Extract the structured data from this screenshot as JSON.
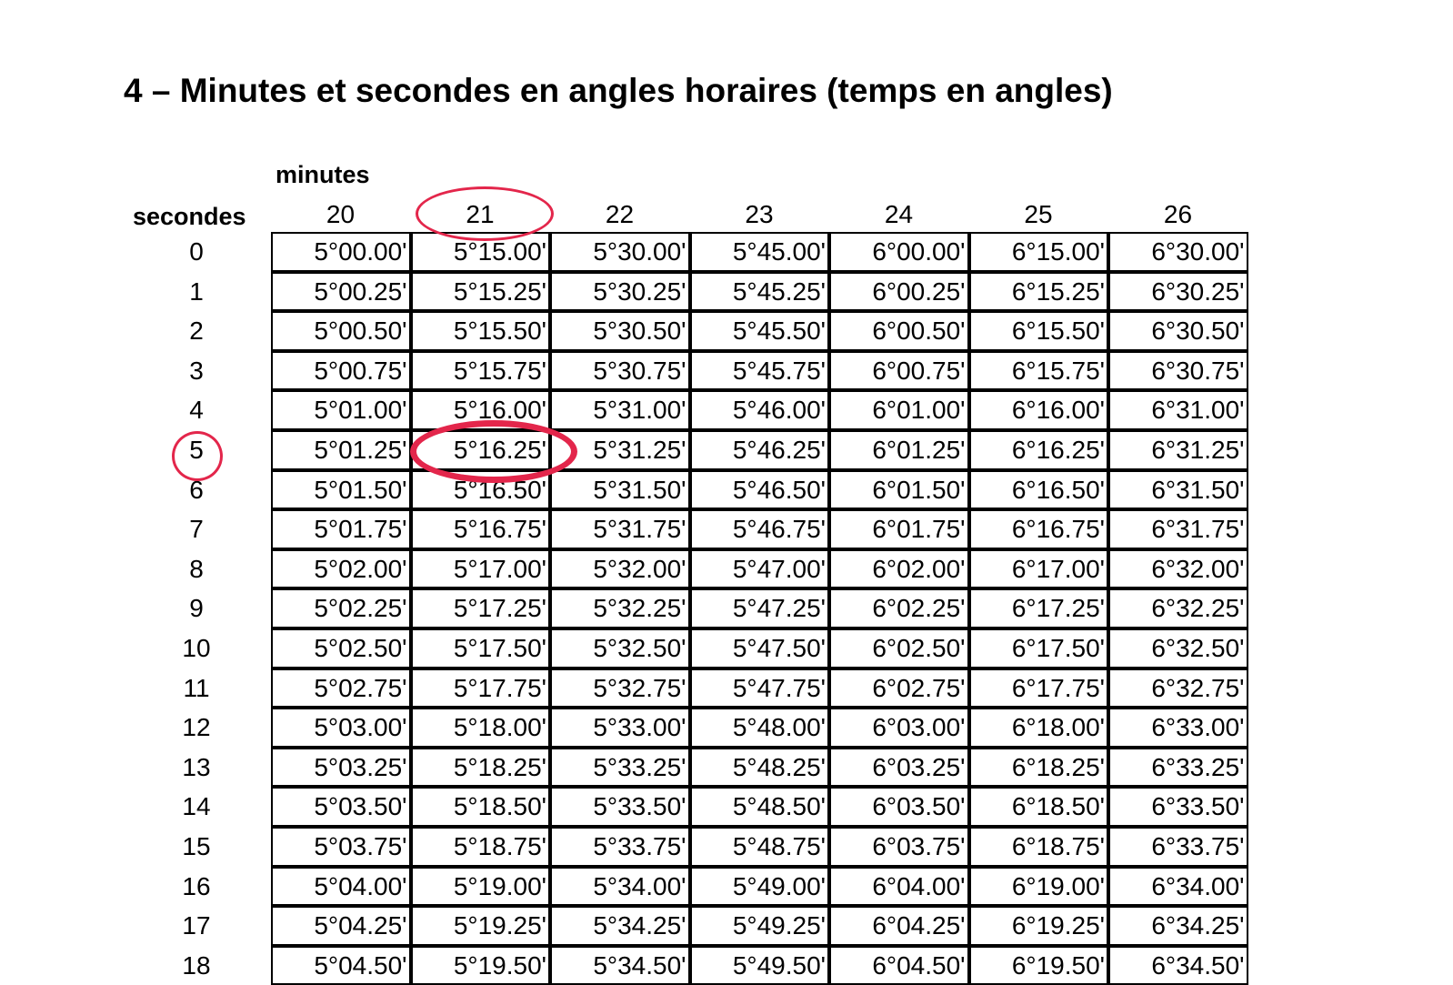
{
  "title": "4 – Minutes et secondes en angles horaires (temps en angles)",
  "minutes_label": "minutes",
  "seconds_label": "secondes",
  "column_headers": [
    "20",
    "21",
    "22",
    "23",
    "24",
    "25",
    "26"
  ],
  "row_labels": [
    "0",
    "1",
    "2",
    "3",
    "4",
    "5",
    "6",
    "7",
    "8",
    "9",
    "10",
    "11",
    "12",
    "13",
    "14",
    "15",
    "16",
    "17",
    "18"
  ],
  "rows": [
    [
      "5°00.00'",
      "5°15.00'",
      "5°30.00'",
      "5°45.00'",
      "6°00.00'",
      "6°15.00'",
      "6°30.00'"
    ],
    [
      "5°00.25'",
      "5°15.25'",
      "5°30.25'",
      "5°45.25'",
      "6°00.25'",
      "6°15.25'",
      "6°30.25'"
    ],
    [
      "5°00.50'",
      "5°15.50'",
      "5°30.50'",
      "5°45.50'",
      "6°00.50'",
      "6°15.50'",
      "6°30.50'"
    ],
    [
      "5°00.75'",
      "5°15.75'",
      "5°30.75'",
      "5°45.75'",
      "6°00.75'",
      "6°15.75'",
      "6°30.75'"
    ],
    [
      "5°01.00'",
      "5°16.00'",
      "5°31.00'",
      "5°46.00'",
      "6°01.00'",
      "6°16.00'",
      "6°31.00'"
    ],
    [
      "5°01.25'",
      "5°16.25'",
      "5°31.25'",
      "5°46.25'",
      "6°01.25'",
      "6°16.25'",
      "6°31.25'"
    ],
    [
      "5°01.50'",
      "5°16.50'",
      "5°31.50'",
      "5°46.50'",
      "6°01.50'",
      "6°16.50'",
      "6°31.50'"
    ],
    [
      "5°01.75'",
      "5°16.75'",
      "5°31.75'",
      "5°46.75'",
      "6°01.75'",
      "6°16.75'",
      "6°31.75'"
    ],
    [
      "5°02.00'",
      "5°17.00'",
      "5°32.00'",
      "5°47.00'",
      "6°02.00'",
      "6°17.00'",
      "6°32.00'"
    ],
    [
      "5°02.25'",
      "5°17.25'",
      "5°32.25'",
      "5°47.25'",
      "6°02.25'",
      "6°17.25'",
      "6°32.25'"
    ],
    [
      "5°02.50'",
      "5°17.50'",
      "5°32.50'",
      "5°47.50'",
      "6°02.50'",
      "6°17.50'",
      "6°32.50'"
    ],
    [
      "5°02.75'",
      "5°17.75'",
      "5°32.75'",
      "5°47.75'",
      "6°02.75'",
      "6°17.75'",
      "6°32.75'"
    ],
    [
      "5°03.00'",
      "5°18.00'",
      "5°33.00'",
      "5°48.00'",
      "6°03.00'",
      "6°18.00'",
      "6°33.00'"
    ],
    [
      "5°03.25'",
      "5°18.25'",
      "5°33.25'",
      "5°48.25'",
      "6°03.25'",
      "6°18.25'",
      "6°33.25'"
    ],
    [
      "5°03.50'",
      "5°18.50'",
      "5°33.50'",
      "5°48.50'",
      "6°03.50'",
      "6°18.50'",
      "6°33.50'"
    ],
    [
      "5°03.75'",
      "5°18.75'",
      "5°33.75'",
      "5°48.75'",
      "6°03.75'",
      "6°18.75'",
      "6°33.75'"
    ],
    [
      "5°04.00'",
      "5°19.00'",
      "5°34.00'",
      "5°49.00'",
      "6°04.00'",
      "6°19.00'",
      "6°34.00'"
    ],
    [
      "5°04.25'",
      "5°19.25'",
      "5°34.25'",
      "5°49.25'",
      "6°04.25'",
      "6°19.25'",
      "6°34.25'"
    ],
    [
      "5°04.50'",
      "5°19.50'",
      "5°34.50'",
      "5°49.50'",
      "6°04.50'",
      "6°19.50'",
      "6°34.50'"
    ]
  ],
  "highlight": {
    "column": "21",
    "row": "5",
    "value": "5°16.25'",
    "color": "#e3264b"
  }
}
